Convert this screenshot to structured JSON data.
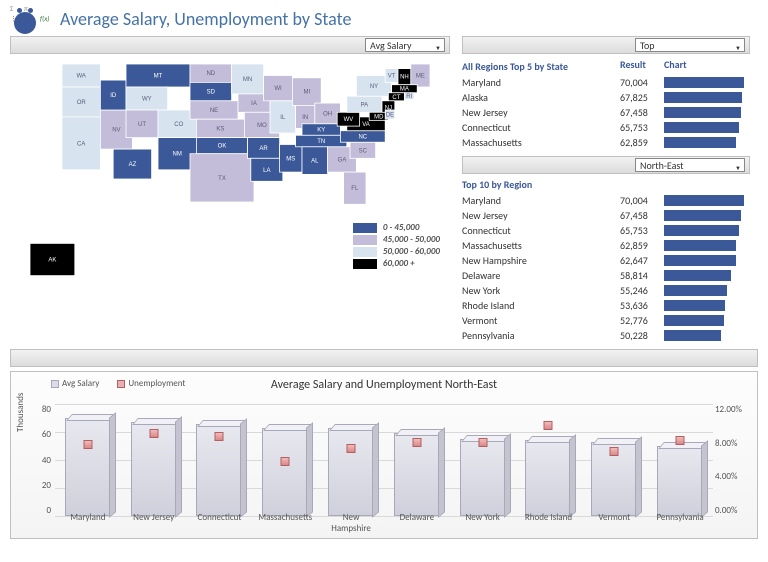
{
  "title": "Average Salary, Unemployment by State",
  "dropdowns": {
    "metric": "Avg Salary",
    "rank": "Top",
    "region": "North-East"
  },
  "map": {
    "colors": {
      "band1": "#3b5998",
      "band2": "#c3bdd9",
      "band3": "#d7e4ef",
      "band4": "#000000",
      "outline": "#ffffff"
    },
    "legend": [
      {
        "label": "0 - 45,000",
        "color": "#3b5998"
      },
      {
        "label": "45,000 - 50,000",
        "color": "#c3bdd9"
      },
      {
        "label": "50,000 - 60,000",
        "color": "#d7e4ef"
      },
      {
        "label": "60,000 +",
        "color": "#000000"
      }
    ],
    "states": [
      {
        "id": "WA",
        "band": 3
      },
      {
        "id": "OR",
        "band": 3
      },
      {
        "id": "CA",
        "band": 3
      },
      {
        "id": "NV",
        "band": 2
      },
      {
        "id": "ID",
        "band": 1
      },
      {
        "id": "MT",
        "band": 1
      },
      {
        "id": "WY",
        "band": 3
      },
      {
        "id": "UT",
        "band": 2
      },
      {
        "id": "AZ",
        "band": 1
      },
      {
        "id": "CO",
        "band": 3
      },
      {
        "id": "NM",
        "band": 1
      },
      {
        "id": "ND",
        "band": 2
      },
      {
        "id": "SD",
        "band": 1
      },
      {
        "id": "NE",
        "band": 2
      },
      {
        "id": "KS",
        "band": 2
      },
      {
        "id": "OK",
        "band": 1
      },
      {
        "id": "TX",
        "band": 2
      },
      {
        "id": "MN",
        "band": 3
      },
      {
        "id": "IA",
        "band": 2
      },
      {
        "id": "MO",
        "band": 2
      },
      {
        "id": "AR",
        "band": 1
      },
      {
        "id": "LA",
        "band": 1
      },
      {
        "id": "WI",
        "band": 2
      },
      {
        "id": "IL",
        "band": 3
      },
      {
        "id": "MS",
        "band": 1
      },
      {
        "id": "MI",
        "band": 2
      },
      {
        "id": "IN",
        "band": 2
      },
      {
        "id": "OH",
        "band": 2
      },
      {
        "id": "KY",
        "band": 1
      },
      {
        "id": "TN",
        "band": 1
      },
      {
        "id": "AL",
        "band": 1
      },
      {
        "id": "GA",
        "band": 2
      },
      {
        "id": "FL",
        "band": 2
      },
      {
        "id": "SC",
        "band": 2
      },
      {
        "id": "NC",
        "band": 1
      },
      {
        "id": "VA",
        "band": 4
      },
      {
        "id": "WV",
        "band": 4
      },
      {
        "id": "PA",
        "band": 3
      },
      {
        "id": "NY",
        "band": 3
      },
      {
        "id": "VT",
        "band": 3
      },
      {
        "id": "NH",
        "band": 4
      },
      {
        "id": "ME",
        "band": 2
      },
      {
        "id": "MA",
        "band": 4
      },
      {
        "id": "CT",
        "band": 4
      },
      {
        "id": "NJ",
        "band": 4
      },
      {
        "id": "MD",
        "band": 4
      },
      {
        "id": "DE",
        "band": 3
      },
      {
        "id": "RI",
        "band": 3
      },
      {
        "id": "AK",
        "band": 4
      }
    ]
  },
  "top5": {
    "title": "All Regions Top 5 by State",
    "head_result": "Result",
    "head_chart": "Chart",
    "max": 70004,
    "bar_color": "#3b5998",
    "rows": [
      {
        "name": "Maryland",
        "value": 70004,
        "fmt": "70,004"
      },
      {
        "name": "Alaska",
        "value": 67825,
        "fmt": "67,825"
      },
      {
        "name": "New Jersey",
        "value": 67458,
        "fmt": "67,458"
      },
      {
        "name": "Connecticut",
        "value": 65753,
        "fmt": "65,753"
      },
      {
        "name": "Massachusetts",
        "value": 62859,
        "fmt": "62,859"
      }
    ]
  },
  "top10": {
    "title": "Top 10 by Region",
    "max": 70004,
    "bar_color": "#3b5998",
    "rows": [
      {
        "name": "Maryland",
        "value": 70004,
        "fmt": "70,004"
      },
      {
        "name": "New Jersey",
        "value": 67458,
        "fmt": "67,458"
      },
      {
        "name": "Connecticut",
        "value": 65753,
        "fmt": "65,753"
      },
      {
        "name": "Massachusetts",
        "value": 62859,
        "fmt": "62,859"
      },
      {
        "name": "New Hampshire",
        "value": 62647,
        "fmt": "62,647"
      },
      {
        "name": "Delaware",
        "value": 58814,
        "fmt": "58,814"
      },
      {
        "name": "New York",
        "value": 55246,
        "fmt": "55,246"
      },
      {
        "name": "Rhode Island",
        "value": 53636,
        "fmt": "53,636"
      },
      {
        "name": "Vermont",
        "value": 52776,
        "fmt": "52,776"
      },
      {
        "name": "Pennsylvania",
        "value": 50228,
        "fmt": "50,228"
      }
    ]
  },
  "combo_chart": {
    "title": "Average Salary and Unemployment North-East",
    "legend": {
      "salary": "Avg Salary",
      "unemp": "Unemployment"
    },
    "y_left": {
      "label": "Thousands",
      "min": 0,
      "max": 80,
      "ticks": [
        "80",
        "60",
        "40",
        "20",
        "0"
      ]
    },
    "y_right": {
      "min": 0,
      "max": 12,
      "ticks": [
        "12.00%",
        "8.00%",
        "4.00%",
        "0.00%"
      ]
    },
    "bar_fill": "#dcdce6",
    "bar_border": "#a8a8b8",
    "marker_fill": "#e8b0b0",
    "marker_border": "#b06060",
    "grid_color": "#d9d9d9",
    "series": [
      {
        "name": "Maryland",
        "salary": 70,
        "unemp": 7.2
      },
      {
        "name": "New Jersey",
        "salary": 67,
        "unemp": 8.4
      },
      {
        "name": "Connecticut",
        "salary": 66,
        "unemp": 8.0
      },
      {
        "name": "Massachusetts",
        "salary": 63,
        "unemp": 5.4
      },
      {
        "name": "New Hampshire",
        "salary": 63,
        "unemp": 6.8
      },
      {
        "name": "Delaware",
        "salary": 59,
        "unemp": 7.4
      },
      {
        "name": "New York",
        "salary": 55,
        "unemp": 7.4
      },
      {
        "name": "Rhode Island",
        "salary": 54,
        "unemp": 9.2
      },
      {
        "name": "Vermont",
        "salary": 53,
        "unemp": 6.4
      },
      {
        "name": "Pennsylvania",
        "salary": 50,
        "unemp": 7.6
      }
    ]
  }
}
